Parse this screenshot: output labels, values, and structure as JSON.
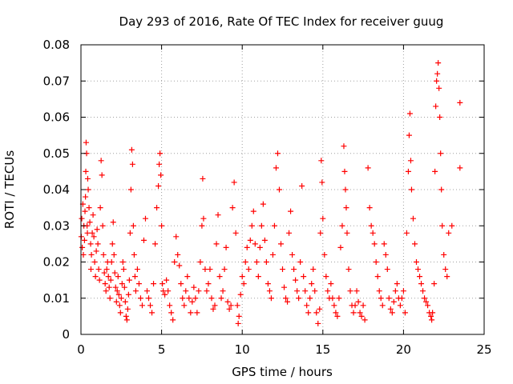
{
  "chart_data": {
    "type": "scatter",
    "title": "Day 293 of 2016, Rate Of TEC Index for receiver guug",
    "xlabel": "GPS time / hours",
    "ylabel": "ROTI / TECUs",
    "xlim": [
      0,
      25
    ],
    "ylim": [
      0,
      0.08
    ],
    "xticks": [
      "0",
      "5",
      "10",
      "15",
      "20",
      "25"
    ],
    "yticks": [
      "0",
      "0.01",
      "0.02",
      "0.03",
      "0.04",
      "0.05",
      "0.06",
      "0.07",
      "0.08"
    ],
    "grid": true,
    "marker": "+",
    "color": "#ff0000",
    "series": [
      {
        "name": "ROTI",
        "points": [
          [
            0.02,
            0.027
          ],
          [
            0.05,
            0.032
          ],
          [
            0.08,
            0.024
          ],
          [
            0.12,
            0.036
          ],
          [
            0.15,
            0.022
          ],
          [
            0.18,
            0.03
          ],
          [
            0.22,
            0.026
          ],
          [
            0.25,
            0.034
          ],
          [
            0.28,
            0.038
          ],
          [
            0.3,
            0.045
          ],
          [
            0.32,
            0.053
          ],
          [
            0.35,
            0.05
          ],
          [
            0.38,
            0.03
          ],
          [
            0.4,
            0.028
          ],
          [
            0.42,
            0.043
          ],
          [
            0.45,
            0.04
          ],
          [
            0.5,
            0.035
          ],
          [
            0.55,
            0.031
          ],
          [
            0.6,
            0.025
          ],
          [
            0.62,
            0.018
          ],
          [
            0.65,
            0.022
          ],
          [
            0.7,
            0.028
          ],
          [
            0.75,
            0.033
          ],
          [
            0.8,
            0.027
          ],
          [
            0.85,
            0.02
          ],
          [
            0.9,
            0.016
          ],
          [
            0.95,
            0.023
          ],
          [
            1.0,
            0.029
          ],
          [
            1.05,
            0.025
          ],
          [
            1.1,
            0.018
          ],
          [
            1.15,
            0.015
          ],
          [
            1.2,
            0.035
          ],
          [
            1.25,
            0.048
          ],
          [
            1.3,
            0.044
          ],
          [
            1.35,
            0.03
          ],
          [
            1.4,
            0.022
          ],
          [
            1.45,
            0.017
          ],
          [
            1.5,
            0.014
          ],
          [
            1.55,
            0.012
          ],
          [
            1.6,
            0.018
          ],
          [
            1.65,
            0.02
          ],
          [
            1.7,
            0.016
          ],
          [
            1.75,
            0.013
          ],
          [
            1.8,
            0.01
          ],
          [
            1.85,
            0.015
          ],
          [
            1.9,
            0.02
          ],
          [
            1.95,
            0.025
          ],
          [
            2.0,
            0.031
          ],
          [
            2.05,
            0.022
          ],
          [
            2.1,
            0.017
          ],
          [
            2.15,
            0.013
          ],
          [
            2.2,
            0.009
          ],
          [
            2.25,
            0.012
          ],
          [
            2.3,
            0.016
          ],
          [
            2.35,
            0.011
          ],
          [
            2.4,
            0.008
          ],
          [
            2.45,
            0.006
          ],
          [
            2.5,
            0.01
          ],
          [
            2.55,
            0.014
          ],
          [
            2.6,
            0.02
          ],
          [
            2.65,
            0.018
          ],
          [
            2.7,
            0.013
          ],
          [
            2.75,
            0.009
          ],
          [
            2.8,
            0.005
          ],
          [
            2.85,
            0.004
          ],
          [
            2.9,
            0.007
          ],
          [
            2.95,
            0.011
          ],
          [
            3.0,
            0.015
          ],
          [
            3.05,
            0.028
          ],
          [
            3.1,
            0.04
          ],
          [
            3.15,
            0.051
          ],
          [
            3.2,
            0.047
          ],
          [
            3.25,
            0.03
          ],
          [
            3.3,
            0.022
          ],
          [
            3.35,
            0.016
          ],
          [
            3.4,
            0.012
          ],
          [
            3.5,
            0.018
          ],
          [
            3.6,
            0.014
          ],
          [
            3.7,
            0.01
          ],
          [
            3.8,
            0.008
          ],
          [
            3.9,
            0.026
          ],
          [
            4.0,
            0.032
          ],
          [
            4.1,
            0.012
          ],
          [
            4.2,
            0.01
          ],
          [
            4.3,
            0.008
          ],
          [
            4.4,
            0.006
          ],
          [
            4.5,
            0.014
          ],
          [
            4.6,
            0.025
          ],
          [
            4.7,
            0.035
          ],
          [
            4.8,
            0.041
          ],
          [
            4.85,
            0.047
          ],
          [
            4.9,
            0.05
          ],
          [
            4.95,
            0.044
          ],
          [
            5.0,
            0.03
          ],
          [
            5.05,
            0.014
          ],
          [
            5.1,
            0.012
          ],
          [
            5.2,
            0.011
          ],
          [
            5.3,
            0.015
          ],
          [
            5.4,
            0.012
          ],
          [
            5.5,
            0.008
          ],
          [
            5.6,
            0.006
          ],
          [
            5.7,
            0.004
          ],
          [
            5.8,
            0.02
          ],
          [
            5.9,
            0.027
          ],
          [
            6.0,
            0.022
          ],
          [
            6.1,
            0.019
          ],
          [
            6.2,
            0.014
          ],
          [
            6.3,
            0.01
          ],
          [
            6.4,
            0.008
          ],
          [
            6.5,
            0.012
          ],
          [
            6.6,
            0.016
          ],
          [
            6.7,
            0.01
          ],
          [
            6.8,
            0.006
          ],
          [
            6.9,
            0.009
          ],
          [
            7.0,
            0.013
          ],
          [
            7.1,
            0.01
          ],
          [
            7.2,
            0.006
          ],
          [
            7.3,
            0.012
          ],
          [
            7.4,
            0.02
          ],
          [
            7.5,
            0.03
          ],
          [
            7.55,
            0.043
          ],
          [
            7.6,
            0.032
          ],
          [
            7.7,
            0.018
          ],
          [
            7.8,
            0.012
          ],
          [
            7.9,
            0.014
          ],
          [
            8.0,
            0.018
          ],
          [
            8.1,
            0.01
          ],
          [
            8.2,
            0.007
          ],
          [
            8.3,
            0.008
          ],
          [
            8.4,
            0.025
          ],
          [
            8.5,
            0.033
          ],
          [
            8.6,
            0.016
          ],
          [
            8.7,
            0.01
          ],
          [
            8.8,
            0.012
          ],
          [
            8.9,
            0.018
          ],
          [
            9.0,
            0.024
          ],
          [
            9.1,
            0.009
          ],
          [
            9.2,
            0.007
          ],
          [
            9.3,
            0.008
          ],
          [
            9.4,
            0.035
          ],
          [
            9.5,
            0.042
          ],
          [
            9.6,
            0.028
          ],
          [
            9.7,
            0.008
          ],
          [
            9.75,
            0.003
          ],
          [
            9.8,
            0.005
          ],
          [
            9.9,
            0.011
          ],
          [
            10.0,
            0.016
          ],
          [
            10.1,
            0.014
          ],
          [
            10.2,
            0.02
          ],
          [
            10.3,
            0.024
          ],
          [
            10.4,
            0.018
          ],
          [
            10.5,
            0.026
          ],
          [
            10.6,
            0.03
          ],
          [
            10.7,
            0.034
          ],
          [
            10.8,
            0.025
          ],
          [
            10.9,
            0.02
          ],
          [
            11.0,
            0.016
          ],
          [
            11.1,
            0.024
          ],
          [
            11.2,
            0.03
          ],
          [
            11.3,
            0.036
          ],
          [
            11.4,
            0.026
          ],
          [
            11.5,
            0.02
          ],
          [
            11.6,
            0.014
          ],
          [
            11.7,
            0.012
          ],
          [
            11.8,
            0.01
          ],
          [
            11.9,
            0.022
          ],
          [
            12.0,
            0.03
          ],
          [
            12.1,
            0.046
          ],
          [
            12.2,
            0.05
          ],
          [
            12.3,
            0.04
          ],
          [
            12.4,
            0.025
          ],
          [
            12.5,
            0.018
          ],
          [
            12.6,
            0.013
          ],
          [
            12.7,
            0.01
          ],
          [
            12.8,
            0.009
          ],
          [
            12.9,
            0.028
          ],
          [
            13.0,
            0.034
          ],
          [
            13.1,
            0.022
          ],
          [
            13.2,
            0.018
          ],
          [
            13.3,
            0.015
          ],
          [
            13.4,
            0.012
          ],
          [
            13.5,
            0.01
          ],
          [
            13.6,
            0.02
          ],
          [
            13.7,
            0.041
          ],
          [
            13.8,
            0.016
          ],
          [
            13.9,
            0.012
          ],
          [
            14.0,
            0.008
          ],
          [
            14.1,
            0.006
          ],
          [
            14.2,
            0.01
          ],
          [
            14.3,
            0.014
          ],
          [
            14.4,
            0.018
          ],
          [
            14.5,
            0.012
          ],
          [
            14.6,
            0.006
          ],
          [
            14.7,
            0.003
          ],
          [
            14.8,
            0.007
          ],
          [
            14.85,
            0.028
          ],
          [
            14.9,
            0.048
          ],
          [
            14.95,
            0.042
          ],
          [
            15.0,
            0.032
          ],
          [
            15.1,
            0.022
          ],
          [
            15.2,
            0.016
          ],
          [
            15.3,
            0.012
          ],
          [
            15.4,
            0.01
          ],
          [
            15.5,
            0.014
          ],
          [
            15.6,
            0.01
          ],
          [
            15.7,
            0.008
          ],
          [
            15.8,
            0.006
          ],
          [
            15.9,
            0.005
          ],
          [
            16.0,
            0.01
          ],
          [
            16.1,
            0.024
          ],
          [
            16.2,
            0.03
          ],
          [
            16.3,
            0.052
          ],
          [
            16.35,
            0.045
          ],
          [
            16.4,
            0.04
          ],
          [
            16.45,
            0.035
          ],
          [
            16.5,
            0.028
          ],
          [
            16.6,
            0.018
          ],
          [
            16.7,
            0.012
          ],
          [
            16.8,
            0.008
          ],
          [
            16.9,
            0.006
          ],
          [
            17.0,
            0.008
          ],
          [
            17.1,
            0.012
          ],
          [
            17.2,
            0.009
          ],
          [
            17.3,
            0.006
          ],
          [
            17.4,
            0.005
          ],
          [
            17.5,
            0.008
          ],
          [
            17.6,
            0.004
          ],
          [
            17.8,
            0.046
          ],
          [
            17.9,
            0.035
          ],
          [
            18.0,
            0.03
          ],
          [
            18.1,
            0.028
          ],
          [
            18.2,
            0.025
          ],
          [
            18.3,
            0.02
          ],
          [
            18.4,
            0.016
          ],
          [
            18.5,
            0.012
          ],
          [
            18.6,
            0.01
          ],
          [
            18.7,
            0.008
          ],
          [
            18.8,
            0.025
          ],
          [
            18.9,
            0.022
          ],
          [
            19.0,
            0.018
          ],
          [
            19.1,
            0.01
          ],
          [
            19.2,
            0.007
          ],
          [
            19.3,
            0.006
          ],
          [
            19.4,
            0.009
          ],
          [
            19.5,
            0.012
          ],
          [
            19.6,
            0.014
          ],
          [
            19.7,
            0.01
          ],
          [
            19.8,
            0.008
          ],
          [
            19.9,
            0.01
          ],
          [
            20.0,
            0.012
          ],
          [
            20.1,
            0.006
          ],
          [
            20.2,
            0.028
          ],
          [
            20.3,
            0.045
          ],
          [
            20.35,
            0.055
          ],
          [
            20.4,
            0.061
          ],
          [
            20.45,
            0.048
          ],
          [
            20.5,
            0.04
          ],
          [
            20.6,
            0.032
          ],
          [
            20.7,
            0.025
          ],
          [
            20.8,
            0.02
          ],
          [
            20.9,
            0.018
          ],
          [
            21.0,
            0.016
          ],
          [
            21.1,
            0.014
          ],
          [
            21.2,
            0.012
          ],
          [
            21.3,
            0.01
          ],
          [
            21.4,
            0.009
          ],
          [
            21.5,
            0.008
          ],
          [
            21.6,
            0.006
          ],
          [
            21.7,
            0.005
          ],
          [
            21.75,
            0.004
          ],
          [
            21.8,
            0.006
          ],
          [
            21.9,
            0.014
          ],
          [
            21.95,
            0.045
          ],
          [
            22.0,
            0.063
          ],
          [
            22.05,
            0.07
          ],
          [
            22.1,
            0.072
          ],
          [
            22.15,
            0.075
          ],
          [
            22.2,
            0.068
          ],
          [
            22.25,
            0.06
          ],
          [
            22.3,
            0.05
          ],
          [
            22.35,
            0.04
          ],
          [
            22.4,
            0.03
          ],
          [
            22.5,
            0.022
          ],
          [
            22.6,
            0.018
          ],
          [
            22.7,
            0.016
          ],
          [
            22.8,
            0.028
          ],
          [
            23.0,
            0.03
          ],
          [
            23.5,
            0.064
          ],
          [
            23.5,
            0.046
          ]
        ]
      }
    ]
  }
}
